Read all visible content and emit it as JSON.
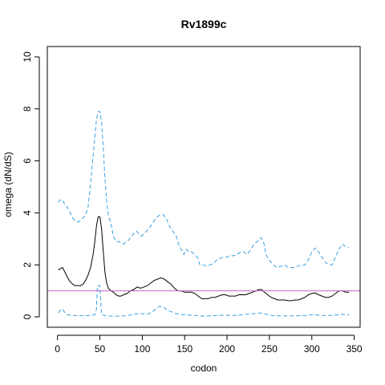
{
  "chart_data": {
    "type": "line",
    "title": "Rv1899c",
    "xlabel": "codon",
    "ylabel": "omega (dN/dS)",
    "xlim": [
      -12,
      357
    ],
    "ylim": [
      -0.4,
      10.4
    ],
    "x_ticks": [
      0,
      50,
      100,
      150,
      200,
      250,
      300,
      350
    ],
    "y_ticks": [
      0,
      2,
      4,
      6,
      8,
      10
    ],
    "reference_line": {
      "y": 1,
      "color": "#c064c0"
    },
    "grid": false,
    "legend": "none",
    "series": [
      {
        "style": "dashed",
        "color": "#3aa0e0",
        "points": [
          [
            1,
            4.4
          ],
          [
            3,
            4.5
          ],
          [
            6,
            4.5
          ],
          [
            9,
            4.3
          ],
          [
            12,
            4.2
          ],
          [
            15,
            4.0
          ],
          [
            18,
            3.8
          ],
          [
            21,
            3.7
          ],
          [
            24,
            3.65
          ],
          [
            27,
            3.7
          ],
          [
            30,
            3.8
          ],
          [
            33,
            3.9
          ],
          [
            36,
            4.2
          ],
          [
            38,
            4.8
          ],
          [
            40,
            5.5
          ],
          [
            42,
            6.2
          ],
          [
            44,
            6.9
          ],
          [
            46,
            7.6
          ],
          [
            48,
            7.9
          ],
          [
            50,
            7.9
          ],
          [
            52,
            7.5
          ],
          [
            54,
            6.5
          ],
          [
            56,
            5.3
          ],
          [
            58,
            4.4
          ],
          [
            60,
            3.9
          ],
          [
            63,
            3.6
          ],
          [
            66,
            3.1
          ],
          [
            69,
            2.9
          ],
          [
            72,
            2.9
          ],
          [
            75,
            2.85
          ],
          [
            78,
            2.8
          ],
          [
            81,
            2.9
          ],
          [
            84,
            2.95
          ],
          [
            87,
            3.1
          ],
          [
            90,
            3.2
          ],
          [
            93,
            3.3
          ],
          [
            96,
            3.2
          ],
          [
            99,
            3.1
          ],
          [
            102,
            3.2
          ],
          [
            105,
            3.3
          ],
          [
            108,
            3.4
          ],
          [
            112,
            3.6
          ],
          [
            116,
            3.8
          ],
          [
            120,
            3.9
          ],
          [
            124,
            3.95
          ],
          [
            128,
            3.8
          ],
          [
            132,
            3.5
          ],
          [
            136,
            3.3
          ],
          [
            140,
            3.1
          ],
          [
            143,
            2.8
          ],
          [
            146,
            2.6
          ],
          [
            149,
            2.4
          ],
          [
            152,
            2.6
          ],
          [
            155,
            2.5
          ],
          [
            158,
            2.5
          ],
          [
            162,
            2.4
          ],
          [
            165,
            2.3
          ],
          [
            168,
            2.0
          ],
          [
            172,
            2.0
          ],
          [
            176,
            1.95
          ],
          [
            180,
            2.0
          ],
          [
            184,
            2.05
          ],
          [
            188,
            2.2
          ],
          [
            192,
            2.25
          ],
          [
            196,
            2.3
          ],
          [
            200,
            2.3
          ],
          [
            204,
            2.35
          ],
          [
            208,
            2.35
          ],
          [
            212,
            2.4
          ],
          [
            216,
            2.5
          ],
          [
            220,
            2.5
          ],
          [
            224,
            2.4
          ],
          [
            228,
            2.6
          ],
          [
            232,
            2.8
          ],
          [
            236,
            2.9
          ],
          [
            240,
            3.05
          ],
          [
            243,
            2.9
          ],
          [
            246,
            2.4
          ],
          [
            249,
            2.2
          ],
          [
            252,
            2.1
          ],
          [
            256,
            1.95
          ],
          [
            260,
            1.9
          ],
          [
            264,
            1.95
          ],
          [
            268,
            2.0
          ],
          [
            272,
            1.9
          ],
          [
            276,
            1.9
          ],
          [
            280,
            1.9
          ],
          [
            284,
            1.95
          ],
          [
            288,
            2.0
          ],
          [
            292,
            2.0
          ],
          [
            296,
            2.2
          ],
          [
            300,
            2.5
          ],
          [
            304,
            2.65
          ],
          [
            308,
            2.5
          ],
          [
            312,
            2.3
          ],
          [
            316,
            2.1
          ],
          [
            320,
            2.0
          ],
          [
            324,
            2.0
          ],
          [
            328,
            2.3
          ],
          [
            332,
            2.6
          ],
          [
            336,
            2.8
          ],
          [
            340,
            2.7
          ],
          [
            344,
            2.65
          ]
        ]
      },
      {
        "style": "solid",
        "color": "#000000",
        "points": [
          [
            1,
            1.8
          ],
          [
            3,
            1.85
          ],
          [
            6,
            1.9
          ],
          [
            9,
            1.7
          ],
          [
            12,
            1.5
          ],
          [
            15,
            1.35
          ],
          [
            18,
            1.25
          ],
          [
            21,
            1.2
          ],
          [
            24,
            1.2
          ],
          [
            27,
            1.2
          ],
          [
            30,
            1.25
          ],
          [
            33,
            1.4
          ],
          [
            36,
            1.6
          ],
          [
            39,
            1.9
          ],
          [
            42,
            2.4
          ],
          [
            44,
            2.9
          ],
          [
            46,
            3.5
          ],
          [
            48,
            3.85
          ],
          [
            50,
            3.85
          ],
          [
            52,
            3.4
          ],
          [
            54,
            2.5
          ],
          [
            56,
            1.7
          ],
          [
            58,
            1.3
          ],
          [
            60,
            1.1
          ],
          [
            63,
            1.0
          ],
          [
            66,
            0.95
          ],
          [
            69,
            0.85
          ],
          [
            72,
            0.8
          ],
          [
            75,
            0.8
          ],
          [
            78,
            0.85
          ],
          [
            82,
            0.9
          ],
          [
            86,
            1.0
          ],
          [
            90,
            1.05
          ],
          [
            94,
            1.15
          ],
          [
            98,
            1.1
          ],
          [
            102,
            1.15
          ],
          [
            106,
            1.2
          ],
          [
            110,
            1.3
          ],
          [
            114,
            1.4
          ],
          [
            118,
            1.45
          ],
          [
            122,
            1.5
          ],
          [
            126,
            1.45
          ],
          [
            130,
            1.35
          ],
          [
            134,
            1.25
          ],
          [
            138,
            1.1
          ],
          [
            142,
            1.0
          ],
          [
            146,
            1.0
          ],
          [
            150,
            0.95
          ],
          [
            154,
            0.95
          ],
          [
            158,
            0.95
          ],
          [
            162,
            0.9
          ],
          [
            166,
            0.8
          ],
          [
            170,
            0.7
          ],
          [
            174,
            0.7
          ],
          [
            178,
            0.7
          ],
          [
            182,
            0.75
          ],
          [
            186,
            0.75
          ],
          [
            190,
            0.8
          ],
          [
            194,
            0.85
          ],
          [
            198,
            0.85
          ],
          [
            202,
            0.8
          ],
          [
            206,
            0.8
          ],
          [
            210,
            0.8
          ],
          [
            214,
            0.85
          ],
          [
            218,
            0.85
          ],
          [
            222,
            0.85
          ],
          [
            226,
            0.9
          ],
          [
            230,
            0.95
          ],
          [
            234,
            1.0
          ],
          [
            238,
            1.05
          ],
          [
            241,
            1.05
          ],
          [
            244,
            0.95
          ],
          [
            248,
            0.85
          ],
          [
            252,
            0.75
          ],
          [
            256,
            0.7
          ],
          [
            260,
            0.65
          ],
          [
            264,
            0.65
          ],
          [
            268,
            0.65
          ],
          [
            272,
            0.62
          ],
          [
            276,
            0.62
          ],
          [
            280,
            0.65
          ],
          [
            284,
            0.65
          ],
          [
            288,
            0.7
          ],
          [
            292,
            0.75
          ],
          [
            296,
            0.85
          ],
          [
            300,
            0.9
          ],
          [
            304,
            0.92
          ],
          [
            308,
            0.85
          ],
          [
            312,
            0.8
          ],
          [
            316,
            0.75
          ],
          [
            320,
            0.75
          ],
          [
            324,
            0.8
          ],
          [
            328,
            0.9
          ],
          [
            332,
            1.0
          ],
          [
            336,
            1.0
          ],
          [
            340,
            0.95
          ],
          [
            344,
            0.95
          ]
        ]
      },
      {
        "style": "dashed",
        "color": "#3aa0e0",
        "points": [
          [
            1,
            0.15
          ],
          [
            3,
            0.25
          ],
          [
            6,
            0.3
          ],
          [
            9,
            0.15
          ],
          [
            12,
            0.08
          ],
          [
            16,
            0.05
          ],
          [
            20,
            0.05
          ],
          [
            25,
            0.05
          ],
          [
            30,
            0.05
          ],
          [
            35,
            0.05
          ],
          [
            40,
            0.06
          ],
          [
            44,
            0.08
          ],
          [
            46,
            0.3
          ],
          [
            47,
            1.2
          ],
          [
            50,
            1.2
          ],
          [
            51,
            0.6
          ],
          [
            52,
            0.1
          ],
          [
            56,
            0.05
          ],
          [
            60,
            0.03
          ],
          [
            66,
            0.03
          ],
          [
            72,
            0.03
          ],
          [
            78,
            0.04
          ],
          [
            84,
            0.06
          ],
          [
            90,
            0.1
          ],
          [
            96,
            0.12
          ],
          [
            100,
            0.12
          ],
          [
            104,
            0.1
          ],
          [
            108,
            0.12
          ],
          [
            112,
            0.2
          ],
          [
            116,
            0.3
          ],
          [
            120,
            0.4
          ],
          [
            124,
            0.4
          ],
          [
            128,
            0.3
          ],
          [
            132,
            0.22
          ],
          [
            136,
            0.18
          ],
          [
            140,
            0.12
          ],
          [
            144,
            0.1
          ],
          [
            148,
            0.08
          ],
          [
            152,
            0.08
          ],
          [
            158,
            0.06
          ],
          [
            164,
            0.05
          ],
          [
            170,
            0.03
          ],
          [
            176,
            0.03
          ],
          [
            182,
            0.04
          ],
          [
            188,
            0.05
          ],
          [
            194,
            0.06
          ],
          [
            200,
            0.06
          ],
          [
            206,
            0.05
          ],
          [
            212,
            0.06
          ],
          [
            218,
            0.08
          ],
          [
            224,
            0.1
          ],
          [
            230,
            0.12
          ],
          [
            236,
            0.14
          ],
          [
            240,
            0.15
          ],
          [
            244,
            0.12
          ],
          [
            248,
            0.08
          ],
          [
            254,
            0.05
          ],
          [
            260,
            0.04
          ],
          [
            266,
            0.04
          ],
          [
            272,
            0.04
          ],
          [
            278,
            0.04
          ],
          [
            284,
            0.04
          ],
          [
            290,
            0.05
          ],
          [
            296,
            0.06
          ],
          [
            300,
            0.08
          ],
          [
            304,
            0.08
          ],
          [
            308,
            0.06
          ],
          [
            314,
            0.05
          ],
          [
            320,
            0.05
          ],
          [
            326,
            0.06
          ],
          [
            332,
            0.08
          ],
          [
            336,
            0.1
          ],
          [
            340,
            0.08
          ],
          [
            344,
            0.08
          ]
        ]
      }
    ]
  }
}
